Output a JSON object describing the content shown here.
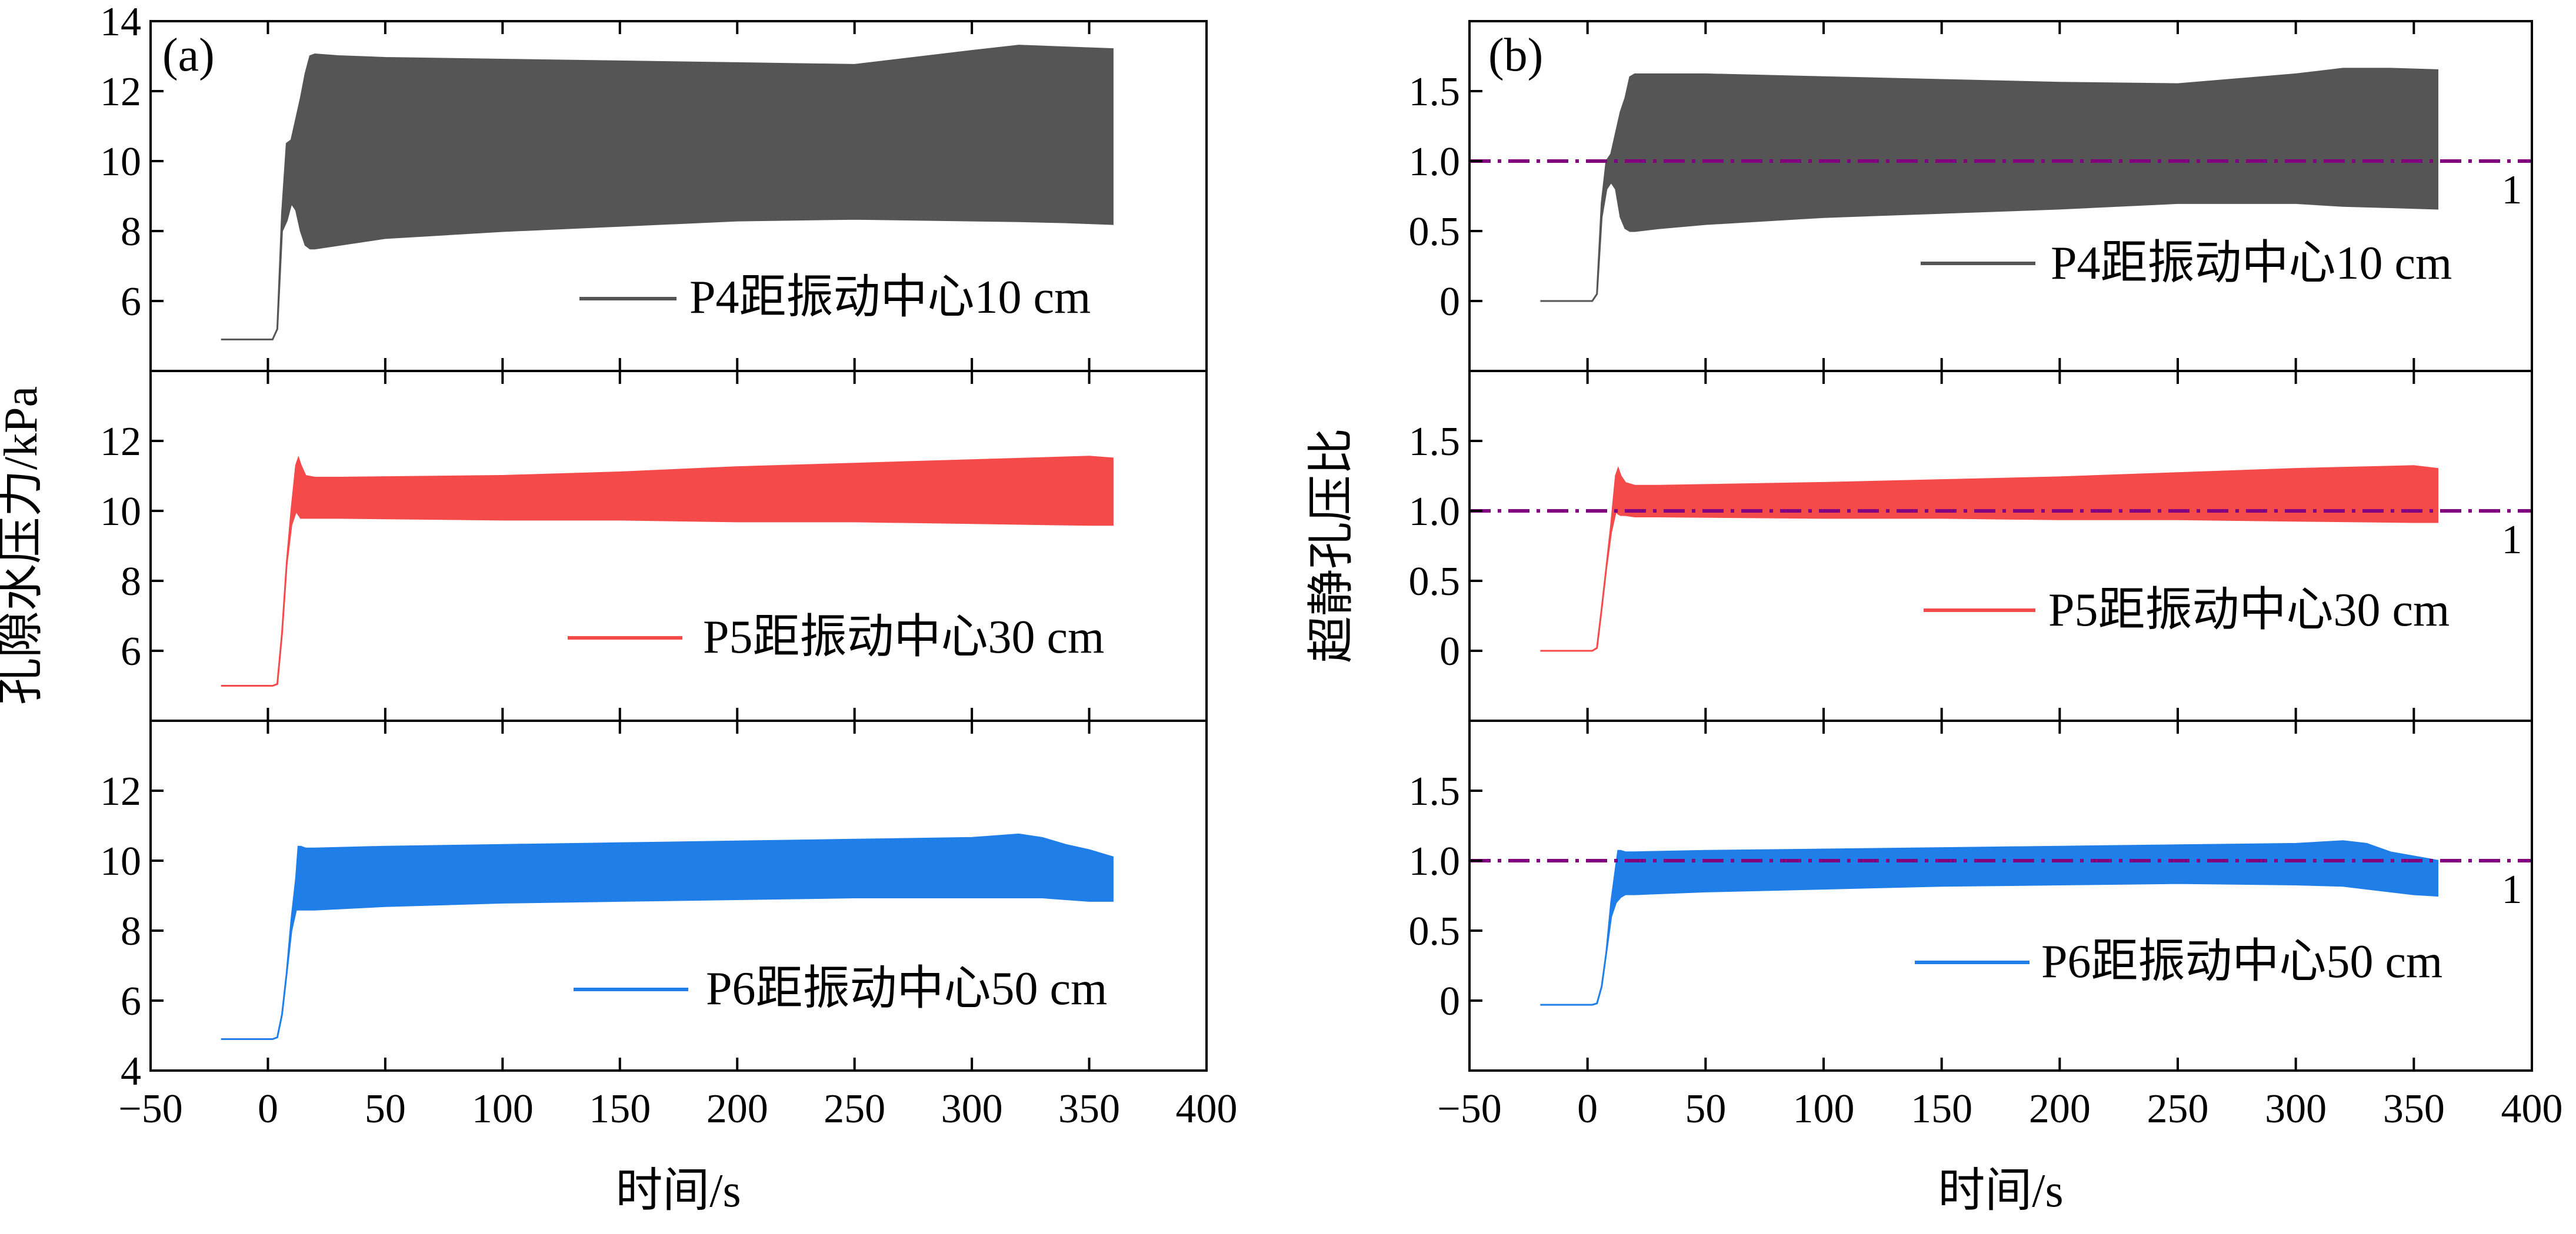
{
  "chart_data": [
    {
      "id": "a",
      "type": "area",
      "panel_label": "(a)",
      "xlabel": "时间/s",
      "ylabel": "孔隙水压力/kPa",
      "xlim": [
        -50,
        400
      ],
      "xticks": [
        -50,
        0,
        50,
        100,
        150,
        200,
        250,
        300,
        350,
        400
      ],
      "x_tick_labels": [
        "−50",
        "0",
        "50",
        "100",
        "150",
        "200",
        "250",
        "300",
        "350",
        "400"
      ],
      "subplots": [
        {
          "legend": "P4距振动中心10 cm",
          "color": "#555555",
          "ylim": [
            4,
            14
          ],
          "yticks": [
            6,
            8,
            10,
            12,
            14
          ],
          "y_tick_labels": [
            "6",
            "8",
            "10",
            "12",
            "14"
          ],
          "band": {
            "time": [
              -20,
              2,
              4,
              6,
              8,
              10,
              12,
              14,
              16,
              18,
              20,
              30,
              50,
              100,
              150,
              200,
              250,
              300,
              320,
              340,
              360
            ],
            "upper": [
              4.9,
              4.9,
              5.2,
              8.5,
              10.5,
              10.6,
              11.2,
              11.8,
              12.5,
              13.0,
              13.05,
              13.0,
              12.95,
              12.9,
              12.85,
              12.8,
              12.75,
              13.15,
              13.3,
              13.25,
              13.2
            ],
            "lower": [
              4.9,
              4.9,
              5.2,
              8.0,
              8.3,
              8.8,
              8.6,
              8.0,
              7.6,
              7.5,
              7.5,
              7.6,
              7.8,
              8.0,
              8.15,
              8.3,
              8.35,
              8.3,
              8.28,
              8.25,
              8.2
            ]
          }
        },
        {
          "legend": "P5距振动中心30 cm",
          "color": "#f44a4a",
          "ylim": [
            4,
            14
          ],
          "yticks": [
            6,
            8,
            10,
            12
          ],
          "y_tick_labels": [
            "6",
            "8",
            "10",
            "12"
          ],
          "band": {
            "time": [
              -20,
              2,
              4,
              6,
              8,
              10,
              12,
              13,
              14,
              16,
              20,
              30,
              100,
              150,
              200,
              250,
              300,
              350,
              360
            ],
            "upper": [
              5.0,
              5.0,
              5.05,
              6.5,
              8.5,
              10.0,
              11.3,
              11.5,
              11.3,
              11.0,
              10.95,
              10.95,
              11.0,
              11.1,
              11.25,
              11.35,
              11.45,
              11.55,
              11.5
            ],
            "lower": [
              5.0,
              5.0,
              5.05,
              6.5,
              8.5,
              9.6,
              10.0,
              9.9,
              9.8,
              9.8,
              9.8,
              9.8,
              9.75,
              9.75,
              9.7,
              9.7,
              9.65,
              9.6,
              9.6
            ]
          }
        },
        {
          "legend": "P6距振动中心50 cm",
          "color": "#1f7ee8",
          "ylim": [
            4,
            14
          ],
          "yticks": [
            4,
            6,
            8,
            10,
            12
          ],
          "y_tick_labels": [
            "4",
            "6",
            "8",
            "10",
            "12"
          ],
          "band": {
            "time": [
              -20,
              2,
              4,
              6,
              8,
              10,
              12,
              13,
              14,
              16,
              20,
              50,
              100,
              150,
              200,
              250,
              300,
              320,
              330,
              340,
              350,
              360
            ],
            "upper": [
              4.9,
              4.9,
              4.95,
              5.6,
              6.8,
              8.3,
              9.5,
              10.4,
              10.4,
              10.35,
              10.35,
              10.4,
              10.45,
              10.5,
              10.55,
              10.6,
              10.65,
              10.75,
              10.65,
              10.45,
              10.3,
              10.1
            ],
            "lower": [
              4.9,
              4.9,
              4.95,
              5.6,
              6.8,
              8.0,
              8.6,
              8.6,
              8.6,
              8.6,
              8.6,
              8.7,
              8.8,
              8.85,
              8.9,
              8.95,
              8.95,
              8.95,
              8.95,
              8.9,
              8.85,
              8.85
            ]
          }
        }
      ]
    },
    {
      "id": "b",
      "type": "area",
      "panel_label": "(b)",
      "xlabel": "时间/s",
      "ylabel": "超静孔压比",
      "xlim": [
        -50,
        400
      ],
      "xticks": [
        -50,
        0,
        50,
        100,
        150,
        200,
        250,
        300,
        350,
        400
      ],
      "x_tick_labels": [
        "−50",
        "0",
        "50",
        "100",
        "150",
        "200",
        "250",
        "300",
        "350",
        "400"
      ],
      "reference_line": {
        "value": 1.0,
        "label": "1",
        "color": "#800080",
        "style": "dash-dot"
      },
      "subplots": [
        {
          "legend": "P4距振动中心10 cm",
          "color": "#555555",
          "ylim": [
            -0.5,
            2.0
          ],
          "yticks": [
            0,
            0.5,
            1.0,
            1.5
          ],
          "y_tick_labels": [
            "0",
            "0.5",
            "1.0",
            "1.5"
          ],
          "band": {
            "time": [
              -20,
              2,
              4,
              6,
              8,
              10,
              12,
              14,
              16,
              18,
              20,
              30,
              50,
              100,
              150,
              200,
              250,
              300,
              320,
              340,
              360
            ],
            "upper": [
              0.0,
              0.0,
              0.05,
              0.7,
              1.0,
              1.05,
              1.2,
              1.35,
              1.45,
              1.6,
              1.62,
              1.62,
              1.62,
              1.6,
              1.58,
              1.56,
              1.55,
              1.62,
              1.66,
              1.66,
              1.65
            ],
            "lower": [
              0.0,
              0.0,
              0.05,
              0.6,
              0.8,
              0.85,
              0.8,
              0.6,
              0.52,
              0.5,
              0.5,
              0.52,
              0.55,
              0.6,
              0.63,
              0.66,
              0.7,
              0.7,
              0.68,
              0.67,
              0.66
            ]
          }
        },
        {
          "legend": "P5距振动中心30 cm",
          "color": "#f44a4a",
          "ylim": [
            -0.5,
            2.0
          ],
          "yticks": [
            0,
            0.5,
            1.0,
            1.5
          ],
          "y_tick_labels": [
            "0",
            "0.5",
            "1.0",
            "1.5"
          ],
          "band": {
            "time": [
              -20,
              2,
              4,
              6,
              8,
              10,
              12,
              13,
              14,
              16,
              20,
              30,
              100,
              150,
              200,
              250,
              300,
              350,
              360
            ],
            "upper": [
              0.0,
              0.0,
              0.02,
              0.3,
              0.6,
              0.9,
              1.25,
              1.3,
              1.25,
              1.2,
              1.18,
              1.18,
              1.2,
              1.22,
              1.24,
              1.27,
              1.3,
              1.32,
              1.3
            ],
            "lower": [
              0.0,
              0.0,
              0.02,
              0.3,
              0.6,
              0.85,
              1.0,
              0.98,
              0.97,
              0.97,
              0.96,
              0.96,
              0.95,
              0.95,
              0.94,
              0.94,
              0.93,
              0.92,
              0.92
            ]
          }
        },
        {
          "legend": "P6距振动中心50 cm",
          "color": "#1f7ee8",
          "ylim": [
            -0.5,
            2.0
          ],
          "yticks": [
            0,
            0.5,
            1.0,
            1.5
          ],
          "y_tick_labels": [
            "0",
            "0.5",
            "1.0",
            "1.5"
          ],
          "band": {
            "time": [
              -20,
              2,
              4,
              6,
              8,
              10,
              12,
              13,
              14,
              16,
              20,
              50,
              100,
              150,
              200,
              250,
              300,
              320,
              330,
              340,
              350,
              360
            ],
            "upper": [
              -0.03,
              -0.03,
              -0.02,
              0.1,
              0.35,
              0.7,
              0.95,
              1.07,
              1.07,
              1.06,
              1.06,
              1.07,
              1.08,
              1.09,
              1.1,
              1.11,
              1.12,
              1.14,
              1.12,
              1.06,
              1.03,
              1.0
            ],
            "lower": [
              -0.03,
              -0.03,
              -0.02,
              0.1,
              0.35,
              0.6,
              0.7,
              0.72,
              0.74,
              0.76,
              0.76,
              0.78,
              0.8,
              0.82,
              0.83,
              0.84,
              0.83,
              0.82,
              0.8,
              0.78,
              0.76,
              0.75
            ]
          }
        }
      ]
    }
  ]
}
